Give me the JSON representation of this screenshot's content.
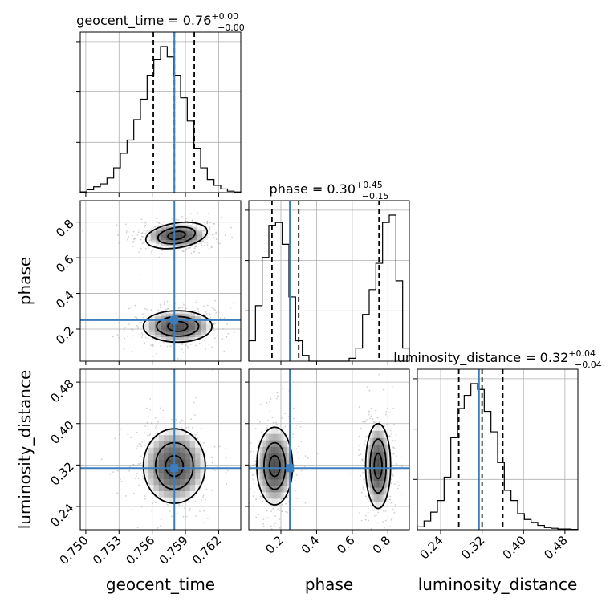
{
  "figure": {
    "colors": {
      "truth": "#3b7dbd",
      "contour": "#000000",
      "grid": "#b0b0b0",
      "scatter": "#a9a9a9"
    }
  },
  "chart_data": {
    "type": "corner",
    "parameters": [
      {
        "name": "geocent_time",
        "label": "geocent_time",
        "range": [
          0.7495,
          0.764
        ],
        "ticks": [
          0.75,
          0.753,
          0.756,
          0.759,
          0.762
        ],
        "tick_labels": [
          "0.750",
          "0.753",
          "0.756",
          "0.759",
          "0.762"
        ],
        "truth": 0.758,
        "quantiles": [
          0.7561,
          0.758,
          0.7598
        ],
        "title": {
          "main": "geocent_time = 0.76",
          "plus": "+0.00",
          "minus": "−0.00"
        },
        "hist": {
          "bins": 24,
          "counts": [
            0.005,
            0.02,
            0.04,
            0.06,
            0.1,
            0.17,
            0.27,
            0.36,
            0.5,
            0.64,
            0.8,
            0.91,
            1.0,
            0.93,
            0.8,
            0.65,
            0.49,
            0.3,
            0.17,
            0.09,
            0.05,
            0.025,
            0.01,
            0.004
          ]
        }
      },
      {
        "name": "phase",
        "label": "phase",
        "range": [
          0.02,
          0.92
        ],
        "ticks": [
          0.2,
          0.4,
          0.6,
          0.8
        ],
        "tick_labels": [
          "0.2",
          "0.4",
          "0.6",
          "0.8"
        ],
        "truth": 0.25,
        "quantiles": [
          0.15,
          0.3,
          0.75
        ],
        "title": {
          "main": "phase = 0.30",
          "plus": "+0.45",
          "minus": "−0.15"
        },
        "hist": {
          "bins": 24,
          "counts": [
            0.14,
            0.38,
            0.71,
            0.93,
            0.95,
            0.8,
            0.44,
            0.14,
            0.04,
            0.0,
            0.0,
            0.0,
            0.0,
            0.0,
            0.0,
            0.02,
            0.09,
            0.32,
            0.49,
            0.67,
            0.95,
            1.0,
            0.55,
            0.09
          ]
        }
      },
      {
        "name": "luminosity_distance",
        "label": "luminosity_distance",
        "range": [
          0.195,
          0.505
        ],
        "ticks": [
          0.24,
          0.32,
          0.4,
          0.48
        ],
        "tick_labels": [
          "0.24",
          "0.32",
          "0.40",
          "0.48"
        ],
        "truth": 0.314,
        "quantiles": [
          0.275,
          0.32,
          0.36
        ],
        "title": {
          "main": "luminosity_distance = 0.32",
          "plus": "+0.04",
          "minus": "−0.04"
        },
        "hist": {
          "bins": 24,
          "counts": [
            0.02,
            0.06,
            0.12,
            0.2,
            0.36,
            0.63,
            0.83,
            0.92,
            1.0,
            0.96,
            0.81,
            0.67,
            0.46,
            0.27,
            0.2,
            0.11,
            0.07,
            0.05,
            0.03,
            0.015,
            0.01,
            0.005,
            0.005,
            0.002
          ]
        }
      }
    ],
    "pairs": [
      {
        "x": "geocent_time",
        "y": "phase",
        "modes": [
          {
            "center": [
              0.7582,
              0.725
            ],
            "levels": [
              [
                0.0008,
                0.022
              ],
              [
                0.0017,
                0.045
              ],
              [
                0.0028,
                0.07
              ]
            ],
            "tilt": -9.0
          },
          {
            "center": [
              0.7583,
              0.215
            ],
            "levels": [
              [
                0.0009,
                0.028
              ],
              [
                0.0019,
                0.055
              ],
              [
                0.0031,
                0.088
              ]
            ],
            "tilt": 0.0
          }
        ]
      },
      {
        "x": "geocent_time",
        "y": "luminosity_distance",
        "modes": [
          {
            "center": [
              0.758,
              0.318
            ],
            "levels": [
              [
                0.0008,
                0.02
              ],
              [
                0.0017,
                0.045
              ],
              [
                0.0028,
                0.072
              ]
            ],
            "tilt": 0.0
          }
        ]
      },
      {
        "x": "phase",
        "y": "luminosity_distance",
        "modes": [
          {
            "center": [
              0.165,
              0.318
            ],
            "levels": [
              [
                0.03,
                0.02
              ],
              [
                0.06,
                0.045
              ],
              [
                0.1,
                0.075
              ]
            ],
            "tilt": 0.0
          },
          {
            "center": [
              0.745,
              0.318
            ],
            "levels": [
              [
                0.022,
                0.024
              ],
              [
                0.045,
                0.052
              ],
              [
                0.07,
                0.082
              ]
            ],
            "tilt": 0.0
          }
        ]
      }
    ],
    "grid": true
  }
}
